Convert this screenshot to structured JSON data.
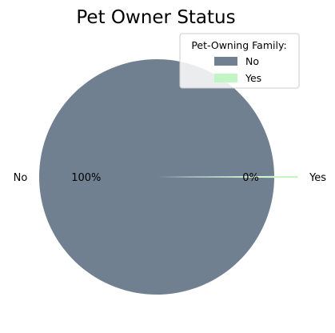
{
  "chart_data": {
    "type": "pie",
    "title": "Pet Owner Status",
    "categories": [
      "No",
      "Yes"
    ],
    "values": [
      100,
      0.25
    ],
    "percent_labels": [
      "100%",
      "0%"
    ],
    "explode": [
      0,
      0.2
    ],
    "colors": [
      "#708090",
      "#c1f5c4"
    ],
    "legend": {
      "title": "Pet-Owning Family:",
      "placement": "upper right",
      "entries": [
        "No",
        "Yes"
      ]
    }
  }
}
